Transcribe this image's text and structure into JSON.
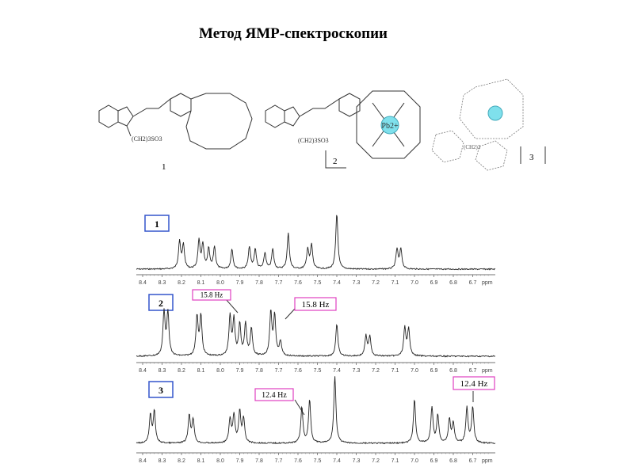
{
  "header": {
    "title": "Метод ЯМР-спектроскопии"
  },
  "structures": [
    {
      "label": "1",
      "group": "(CH2)3SO3"
    },
    {
      "label": "2",
      "group": "(CH2)3SO3",
      "ion": "Pb2+"
    },
    {
      "label": "3",
      "group": "(CH2)3"
    }
  ],
  "spectra": [
    {
      "label": "1",
      "ticks": [
        "8.4",
        "8.3",
        "8.2",
        "8.1",
        "8.0",
        "7.9",
        "7.8",
        "7.7",
        "7.6",
        "7.5",
        "7.4",
        "7.3",
        "7.2",
        "7.1",
        "7.0",
        "6.9",
        "6.8",
        "6.7"
      ],
      "unit": "ppm",
      "annotations": []
    },
    {
      "label": "2",
      "ticks": [
        "8.4",
        "8.3",
        "8.2",
        "8.1",
        "8.0",
        "7.9",
        "7.8",
        "7.7",
        "7.6",
        "7.5",
        "7.4",
        "7.3",
        "7.2",
        "7.1",
        "7.0",
        "6.9",
        "6.8",
        "6.7"
      ],
      "unit": "ppm",
      "annotations": [
        "15.8 Hz",
        "15.8 Hz"
      ]
    },
    {
      "label": "3",
      "ticks": [
        "8.4",
        "8.3",
        "8.2",
        "8.1",
        "8.0",
        "7.9",
        "7.8",
        "7.7",
        "7.6",
        "7.5",
        "7.4",
        "7.3",
        "7.2",
        "7.1",
        "7.0",
        "6.9",
        "6.8",
        "6.7"
      ],
      "unit": "ppm",
      "annotations": [
        "12.4 Hz",
        "12.4 Hz"
      ]
    }
  ]
}
